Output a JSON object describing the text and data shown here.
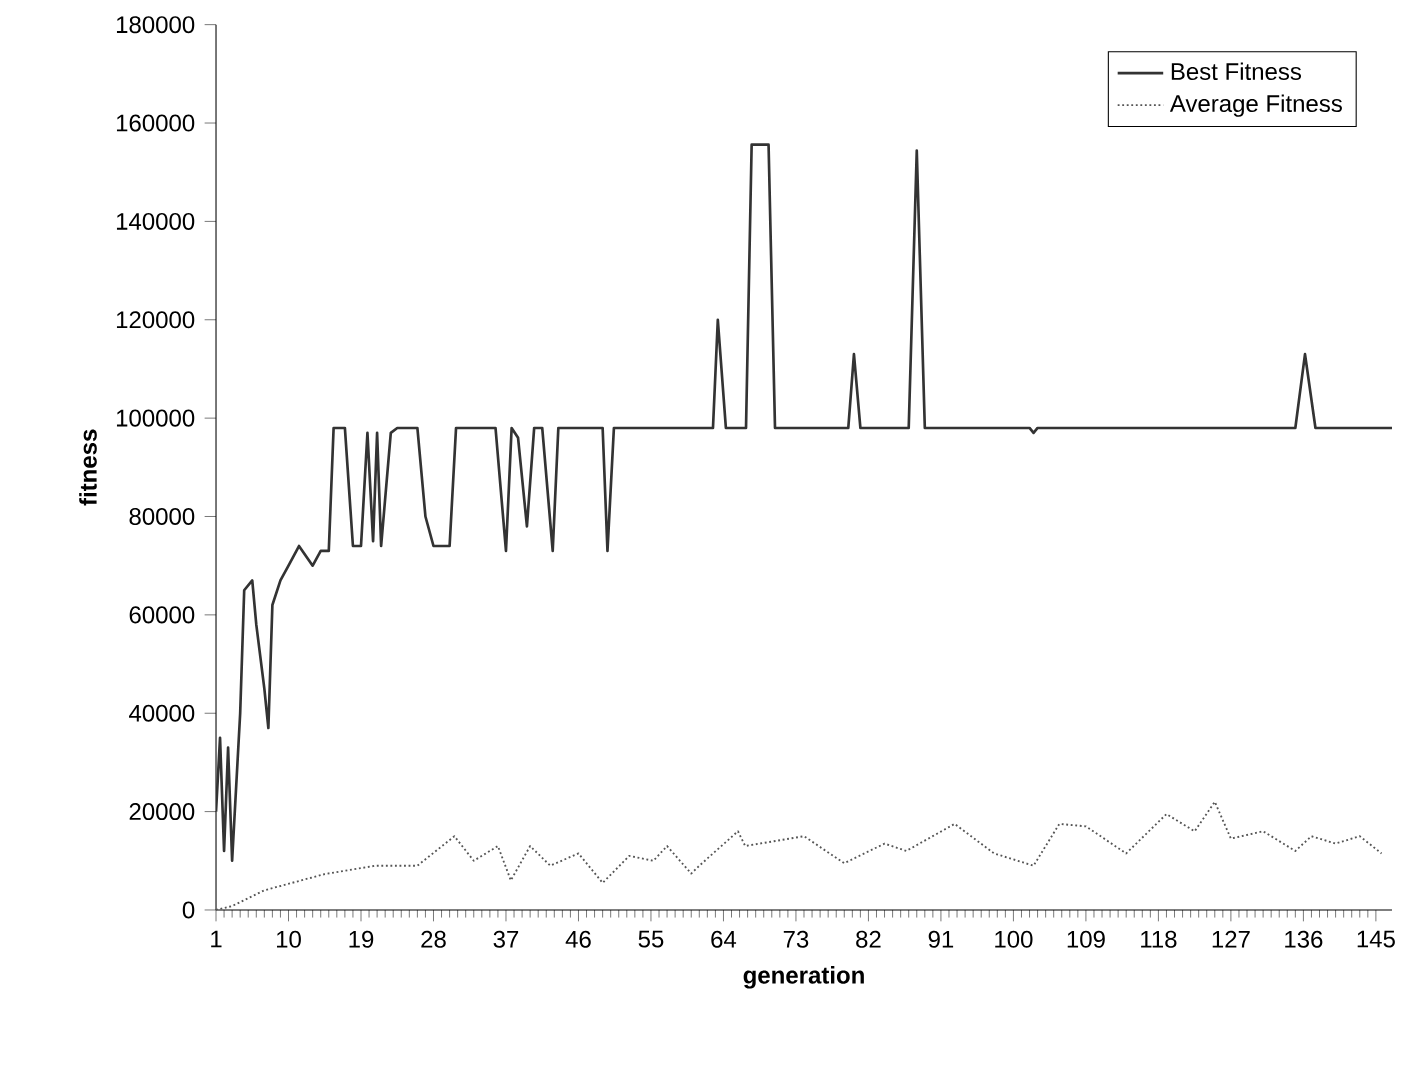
{
  "chart_data": {
    "type": "line",
    "xlabel": "generation",
    "ylabel": "fitness",
    "xlim": [
      1,
      147
    ],
    "ylim": [
      0,
      180000
    ],
    "xticks": [
      1,
      10,
      19,
      28,
      37,
      46,
      55,
      64,
      73,
      82,
      91,
      100,
      109,
      118,
      127,
      136,
      145
    ],
    "yticks": [
      0,
      20000,
      40000,
      60000,
      80000,
      100000,
      120000,
      140000,
      160000,
      180000
    ],
    "legend": "top right",
    "grid": false,
    "marker": "none",
    "series": [
      {
        "name": "Best Fitness",
        "color": "#333333",
        "line_style": "solid",
        "x": [
          1,
          1.5,
          2,
          2.5,
          3,
          4,
          4.5,
          5.5,
          6,
          7,
          7.5,
          8,
          9,
          10,
          11.3,
          13,
          14,
          15,
          15.6,
          17,
          18,
          19,
          19.8,
          20.5,
          21,
          21.5,
          22.7,
          23.5,
          26,
          27,
          28,
          30,
          30.8,
          35.7,
          37,
          37.7,
          38.5,
          39.6,
          40.5,
          41.5,
          42.8,
          43.5,
          49,
          49.6,
          50.4,
          55,
          62.7,
          63.3,
          64.3,
          66.8,
          67.5,
          69.6,
          70.4,
          79.5,
          80.2,
          81,
          87,
          88,
          89,
          102,
          102.5,
          103,
          135,
          136.2,
          137.5,
          147
        ],
        "values": [
          20000,
          35000,
          12000,
          33000,
          10000,
          40000,
          65000,
          67000,
          58000,
          45000,
          37000,
          62000,
          67000,
          70000,
          74000,
          70000,
          73000,
          73000,
          98000,
          98000,
          74000,
          74000,
          97000,
          75000,
          97000,
          74000,
          97000,
          98000,
          98000,
          80000,
          74000,
          74000,
          98000,
          98000,
          73000,
          98000,
          96000,
          78000,
          98000,
          98000,
          73000,
          98000,
          98000,
          73000,
          98000,
          98000,
          98000,
          120000,
          98000,
          98000,
          155600,
          155600,
          98000,
          98000,
          113000,
          98000,
          98000,
          154400,
          98000,
          98000,
          97000,
          98000,
          98000,
          113000,
          98000,
          98000
        ]
      },
      {
        "name": "Average Fitness",
        "color": "#555555",
        "line_style": "dotted",
        "x": [
          1,
          3,
          7,
          14.5,
          20.8,
          26,
          30.6,
          33,
          36,
          37.6,
          40,
          42.5,
          46,
          49,
          52.3,
          55.3,
          57,
          60,
          61,
          65.8,
          66.7,
          74,
          79,
          84,
          86.7,
          92.7,
          97.6,
          102.5,
          105.7,
          109,
          114,
          119,
          122.5,
          125,
          127,
          131,
          135,
          137,
          140,
          143,
          145.7
        ],
        "values": [
          0,
          800,
          4000,
          7300,
          9000,
          9000,
          15000,
          10000,
          13000,
          6000,
          13000,
          9000,
          11500,
          5500,
          11000,
          10000,
          13000,
          7400,
          9000,
          16000,
          13000,
          15000,
          9500,
          13500,
          12000,
          17500,
          11500,
          9000,
          17500,
          17000,
          11500,
          19500,
          16000,
          22000,
          14500,
          16000,
          12000,
          15000,
          13500,
          15000,
          11500
        ]
      }
    ]
  }
}
